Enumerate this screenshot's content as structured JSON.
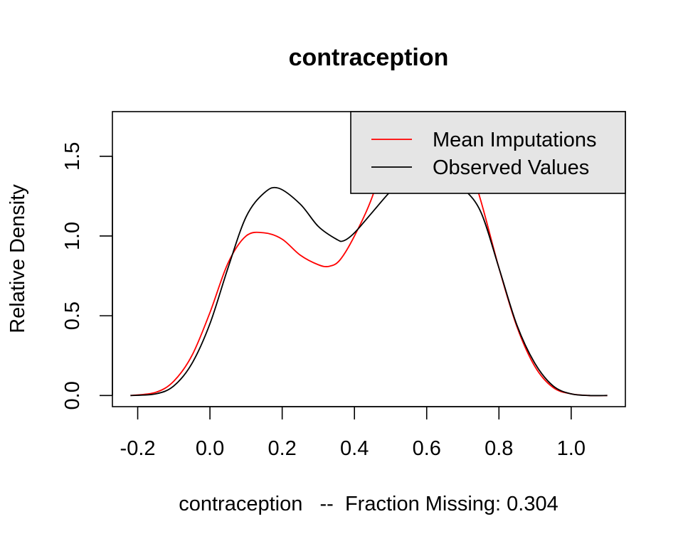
{
  "chart_data": {
    "type": "line",
    "title": "contraception",
    "xlabel": "contraception   --  Fraction Missing: 0.304",
    "ylabel": "Relative Density",
    "xlim": [
      -0.27,
      1.15
    ],
    "ylim": [
      -0.07,
      1.78
    ],
    "x_ticks": [
      -0.2,
      0.0,
      0.2,
      0.4,
      0.6,
      0.8,
      1.0
    ],
    "x_tick_labels": [
      "-0.2",
      "0.0",
      "0.2",
      "0.4",
      "0.6",
      "0.8",
      "1.0"
    ],
    "y_ticks": [
      0.0,
      0.5,
      1.0,
      1.5
    ],
    "y_tick_labels": [
      "0.0",
      "0.5",
      "1.0",
      "1.5"
    ],
    "grid": false,
    "legend_position": "top-right",
    "legend_background": "#e5e5e5",
    "series": [
      {
        "name": "Mean Imputations",
        "color": "#ff0000",
        "x": [
          -0.22,
          -0.15,
          -0.1,
          -0.05,
          0.0,
          0.05,
          0.1,
          0.15,
          0.2,
          0.25,
          0.3,
          0.33,
          0.36,
          0.4,
          0.45,
          0.5,
          0.55,
          0.6,
          0.65,
          0.7,
          0.75,
          0.8,
          0.85,
          0.9,
          0.95,
          1.0,
          1.05,
          1.1
        ],
        "y": [
          0.0,
          0.02,
          0.09,
          0.25,
          0.52,
          0.83,
          1.0,
          1.02,
          0.98,
          0.88,
          0.82,
          0.81,
          0.85,
          1.0,
          1.25,
          1.62,
          1.92,
          1.98,
          1.85,
          1.58,
          1.22,
          0.8,
          0.43,
          0.18,
          0.05,
          0.01,
          0.0,
          0.0
        ]
      },
      {
        "name": "Observed Values",
        "color": "#000000",
        "x": [
          -0.22,
          -0.15,
          -0.1,
          -0.05,
          0.0,
          0.05,
          0.1,
          0.15,
          0.19,
          0.25,
          0.3,
          0.35,
          0.37,
          0.4,
          0.45,
          0.5,
          0.55,
          0.6,
          0.65,
          0.7,
          0.75,
          0.8,
          0.85,
          0.9,
          0.95,
          1.0,
          1.05,
          1.1
        ],
        "y": [
          0.0,
          0.01,
          0.06,
          0.2,
          0.45,
          0.8,
          1.12,
          1.27,
          1.3,
          1.2,
          1.06,
          0.98,
          0.97,
          1.02,
          1.15,
          1.28,
          1.38,
          1.42,
          1.38,
          1.3,
          1.15,
          0.8,
          0.44,
          0.2,
          0.06,
          0.01,
          0.0,
          0.0
        ]
      }
    ]
  }
}
